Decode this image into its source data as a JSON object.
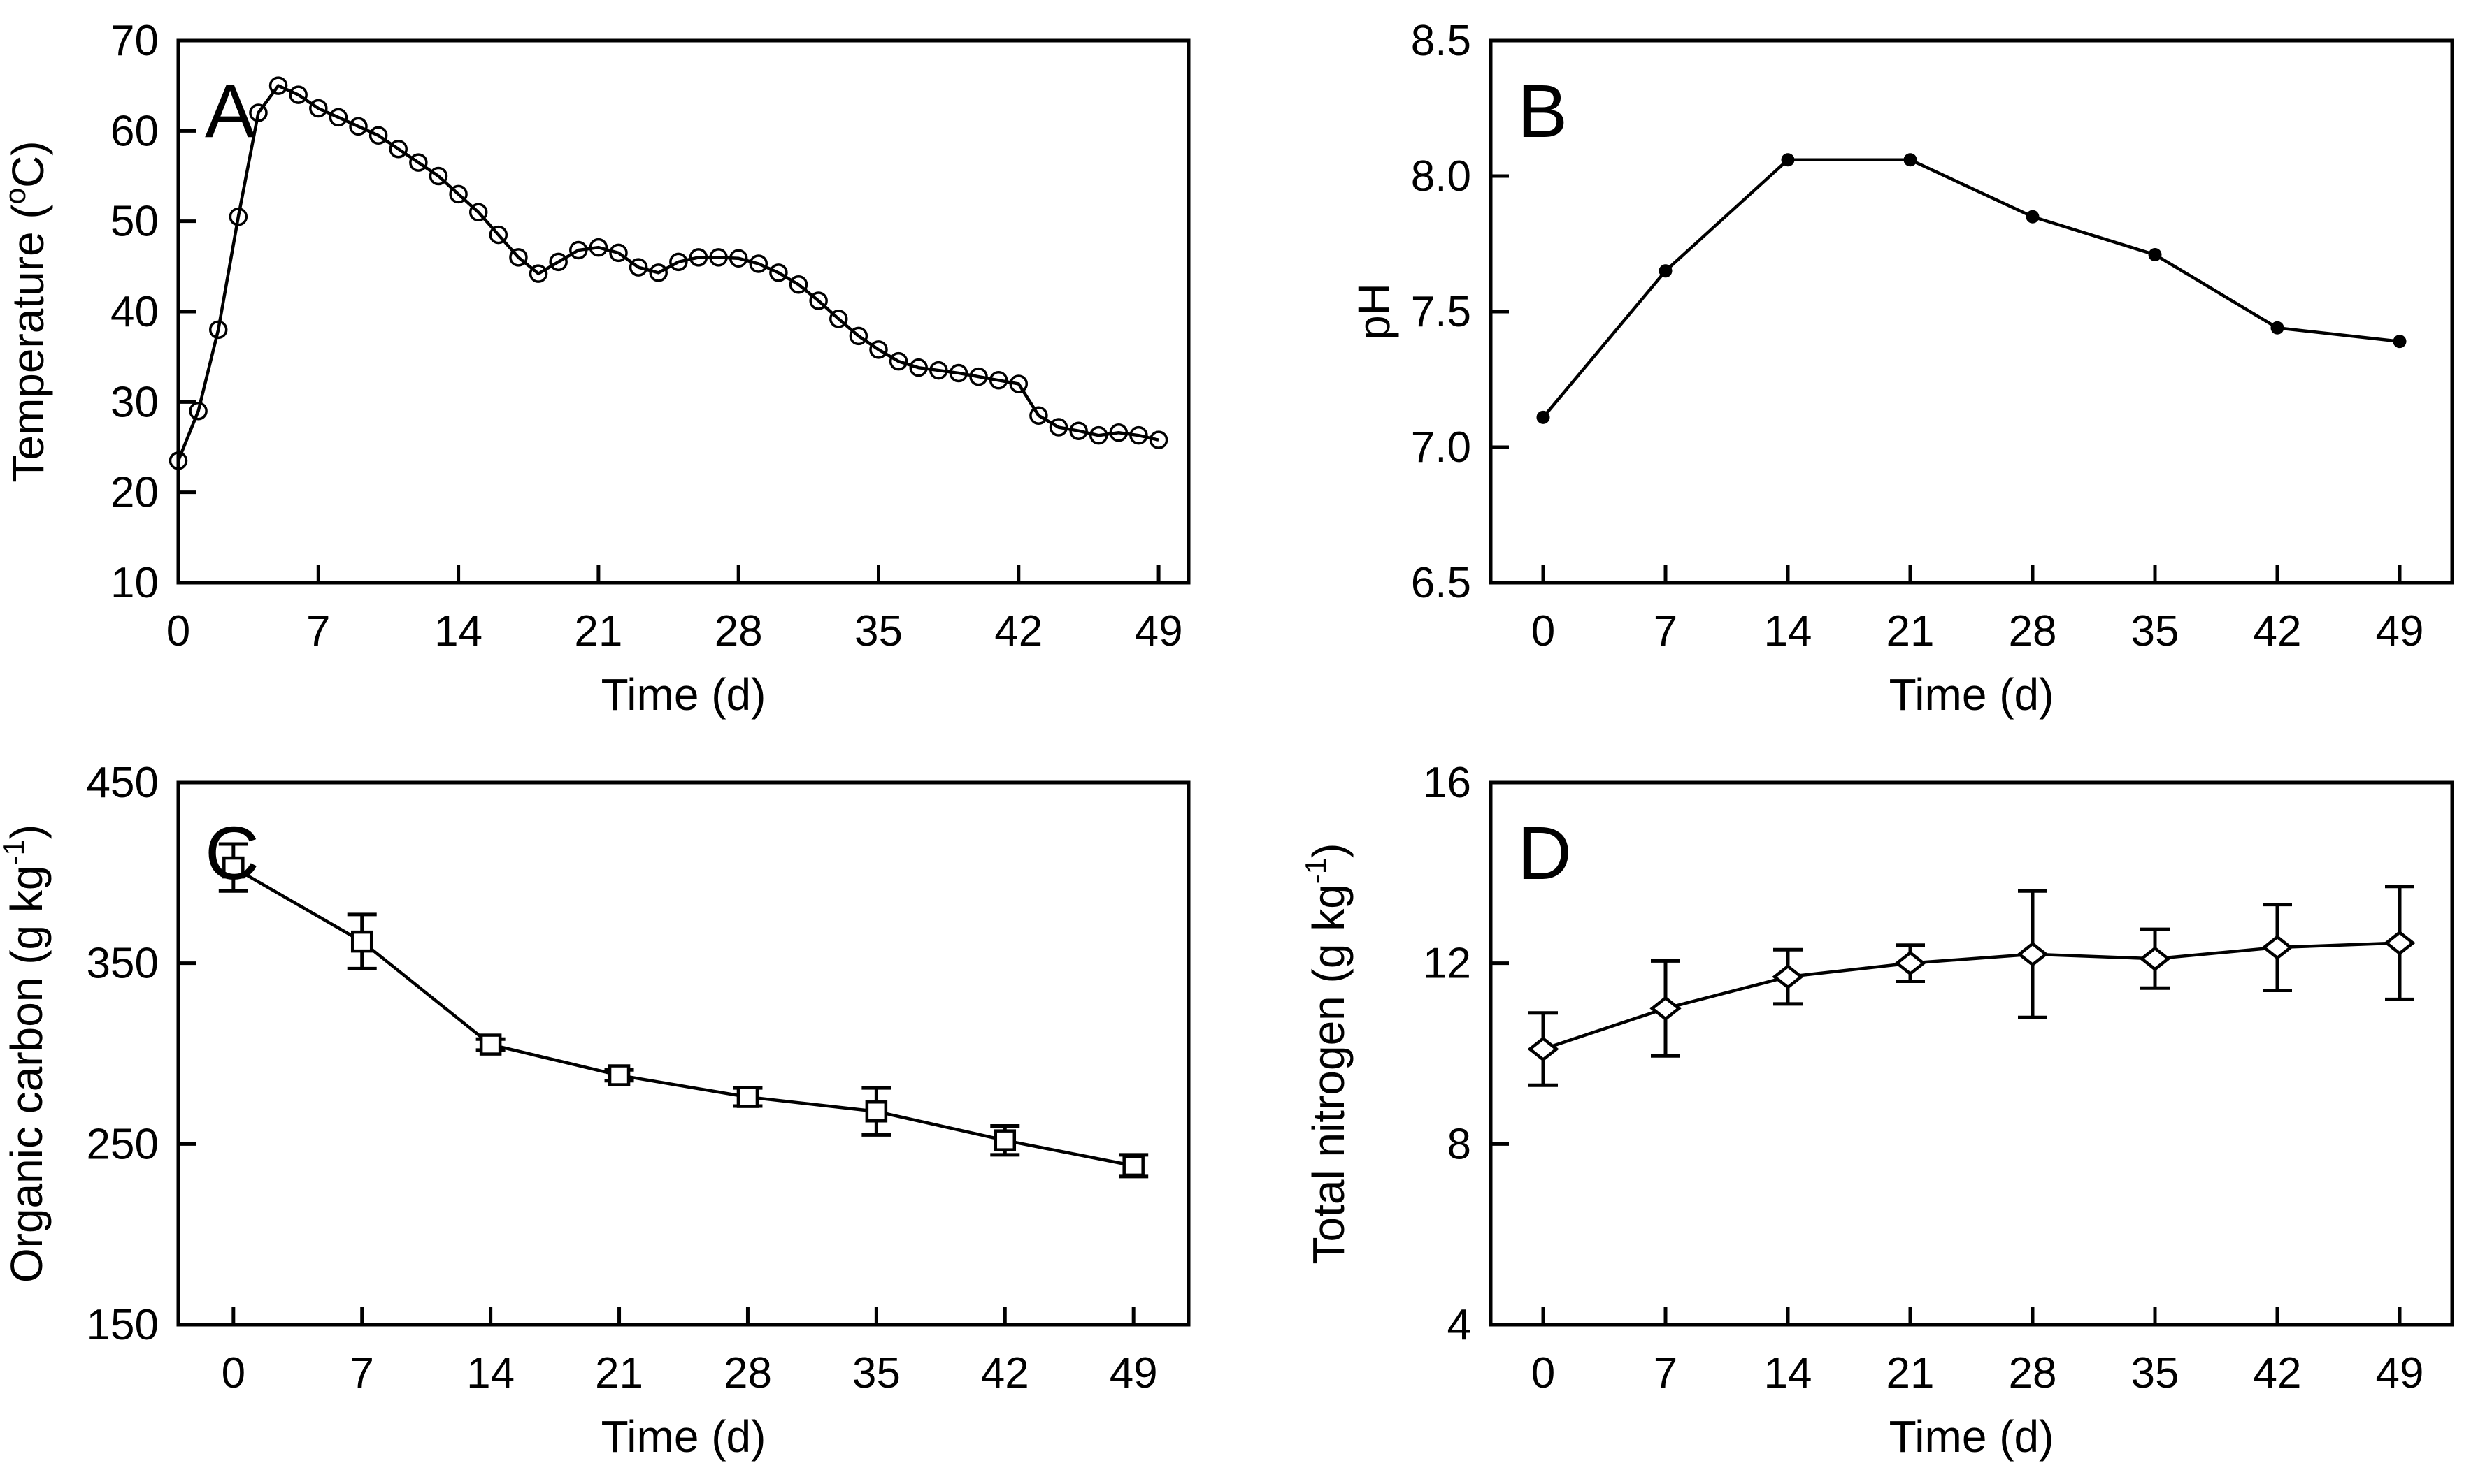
{
  "figure": {
    "background": "#ffffff",
    "axis_color": "#000000",
    "line_color": "#000000",
    "panel_labels": [
      "A",
      "B",
      "C",
      "D"
    ]
  },
  "chart_data": [
    {
      "type": "line",
      "panel_label": "A",
      "xlabel": "Time (d)",
      "ylabel": "Temperature (°C)",
      "ylabel_segments": [
        {
          "text": "Temperature ("
        },
        {
          "text": "o",
          "sup": true
        },
        {
          "text": "C)"
        }
      ],
      "marker": "open-circle",
      "grid": false,
      "legend": null,
      "xlim": [
        0,
        50.5
      ],
      "ylim": [
        10,
        70
      ],
      "xticks": [
        0,
        7,
        14,
        21,
        28,
        35,
        42,
        49
      ],
      "xtick_labels": [
        "0",
        "7",
        "14",
        "21",
        "28",
        "35",
        "42",
        "49"
      ],
      "yticks": [
        10,
        20,
        30,
        40,
        50,
        60,
        70
      ],
      "ytick_labels": [
        "10",
        "20",
        "30",
        "40",
        "50",
        "60",
        "70"
      ],
      "x": [
        0,
        1,
        2,
        3,
        4,
        5,
        6,
        7,
        8,
        9,
        10,
        11,
        12,
        13,
        14,
        15,
        16,
        17,
        18,
        19,
        20,
        21,
        22,
        23,
        24,
        25,
        26,
        27,
        28,
        29,
        30,
        31,
        32,
        33,
        34,
        35,
        36,
        37,
        38,
        39,
        40,
        41,
        42,
        43,
        44,
        45,
        46,
        47,
        48,
        49
      ],
      "y": [
        23.5,
        29,
        38,
        50.5,
        62,
        65,
        64,
        62.5,
        61.5,
        60.5,
        59.5,
        58,
        56.5,
        55,
        53,
        51,
        48.5,
        46,
        44.2,
        45.5,
        46.8,
        47.1,
        46.5,
        44.9,
        44.3,
        45.5,
        46,
        46,
        45.9,
        45.3,
        44.3,
        43,
        41.2,
        39.2,
        37.3,
        35.8,
        34.5,
        33.8,
        33.5,
        33.2,
        32.8,
        32.4,
        32,
        28.5,
        27.2,
        26.8,
        26.3,
        26.6,
        26.3,
        25.8
      ]
    },
    {
      "type": "line",
      "panel_label": "B",
      "xlabel": "Time (d)",
      "ylabel": "pH",
      "ylabel_segments": [
        {
          "text": "pH"
        }
      ],
      "marker": "filled-circle",
      "grid": false,
      "legend": null,
      "xlim": [
        -3,
        52
      ],
      "ylim": [
        6.5,
        8.5
      ],
      "xticks": [
        0,
        7,
        14,
        21,
        28,
        35,
        42,
        49
      ],
      "xtick_labels": [
        "0",
        "7",
        "14",
        "21",
        "28",
        "35",
        "42",
        "49"
      ],
      "yticks": [
        6.5,
        7.0,
        7.5,
        8.0,
        8.5
      ],
      "ytick_labels": [
        "6.5",
        "7.0",
        "7.5",
        "8.0",
        "8.5"
      ],
      "x": [
        0,
        7,
        14,
        21,
        28,
        35,
        42,
        49
      ],
      "y": [
        7.11,
        7.65,
        8.06,
        8.06,
        7.85,
        7.71,
        7.44,
        7.39
      ]
    },
    {
      "type": "line",
      "panel_label": "C",
      "xlabel": "Time (d)",
      "ylabel": "Organic carbon (g kg-1)",
      "ylabel_segments": [
        {
          "text": "Organic carbon (g kg"
        },
        {
          "text": "-1",
          "sup": true
        },
        {
          "text": ")"
        }
      ],
      "marker": "open-square",
      "grid": false,
      "legend": null,
      "xlim": [
        -3,
        52
      ],
      "ylim": [
        150,
        450
      ],
      "xticks": [
        0,
        7,
        14,
        21,
        28,
        35,
        42,
        49
      ],
      "xtick_labels": [
        "0",
        "7",
        "14",
        "21",
        "28",
        "35",
        "42",
        "49"
      ],
      "yticks": [
        150,
        250,
        350,
        450
      ],
      "ytick_labels": [
        "150",
        "250",
        "350",
        "450"
      ],
      "x": [
        0,
        7,
        14,
        21,
        28,
        35,
        42,
        49
      ],
      "y": [
        403,
        362,
        305,
        288,
        276,
        268,
        252,
        238
      ],
      "y_err": [
        13,
        15,
        3,
        3,
        5,
        13,
        8,
        6
      ]
    },
    {
      "type": "line",
      "panel_label": "D",
      "xlabel": "Time (d)",
      "ylabel": "Total nitrogen (g kg-1)",
      "ylabel_segments": [
        {
          "text": "Total nitrogen (g kg"
        },
        {
          "text": "-1",
          "sup": true
        },
        {
          "text": ")"
        }
      ],
      "marker": "open-diamond",
      "grid": false,
      "legend": null,
      "xlim": [
        -3,
        52
      ],
      "ylim": [
        4,
        16
      ],
      "xticks": [
        0,
        7,
        14,
        21,
        28,
        35,
        42,
        49
      ],
      "xtick_labels": [
        "0",
        "7",
        "14",
        "21",
        "28",
        "35",
        "42",
        "49"
      ],
      "yticks": [
        4,
        8,
        12,
        16
      ],
      "ytick_labels": [
        "4",
        "8",
        "12",
        "16"
      ],
      "x": [
        0,
        7,
        14,
        21,
        28,
        35,
        42,
        49
      ],
      "y": [
        10.1,
        11.0,
        11.7,
        12.0,
        12.2,
        12.1,
        12.35,
        12.45
      ],
      "y_err": [
        0.8,
        1.05,
        0.6,
        0.4,
        1.4,
        0.65,
        0.95,
        1.25
      ]
    }
  ]
}
